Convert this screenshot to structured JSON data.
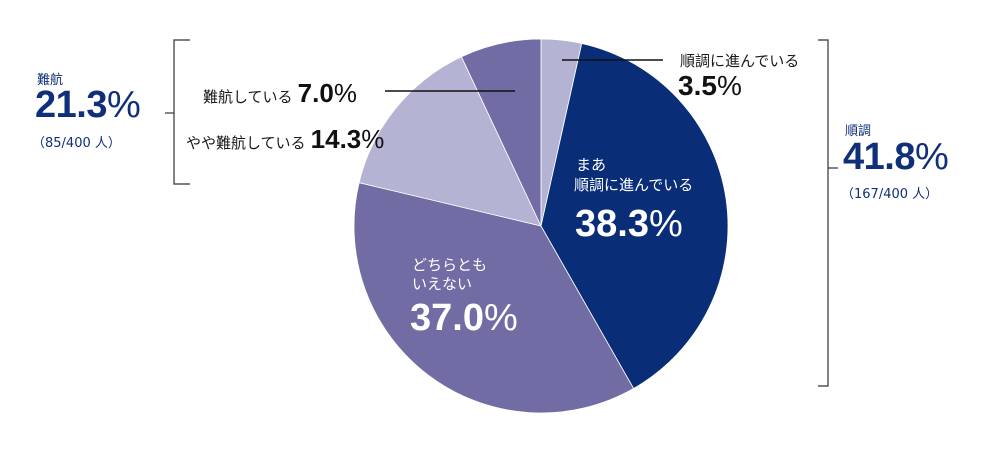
{
  "chart_data": {
    "type": "pie",
    "title": "",
    "start_angle_deg": 0,
    "direction": "clockwise",
    "slices": [
      {
        "label": "順調に進んでいる",
        "value": 3.5,
        "display": "3.5%",
        "color": "#b5b3d4",
        "group": "順調"
      },
      {
        "label": "まあ 順調に進んでいる",
        "value": 38.3,
        "display": "38.3%",
        "color": "#0a2d78",
        "group": "順調"
      },
      {
        "label": "どちらとも いえない",
        "value": 37.0,
        "display": "37.0%",
        "color": "#716ca3",
        "group": null
      },
      {
        "label": "やや難航している",
        "value": 14.3,
        "display": "14.3%",
        "color": "#b5b3d4",
        "group": "難航"
      },
      {
        "label": "難航している",
        "value": 7.0,
        "display": "7.0%",
        "color": "#716ca3",
        "group": "難航"
      }
    ],
    "groups": [
      {
        "name": "難航",
        "percent": "21.3%",
        "count": "（85/400 人）"
      },
      {
        "name": "順調",
        "percent": "41.8%",
        "count": "（167/400 人）"
      }
    ]
  },
  "labels": {
    "smooth": {
      "text": "順調に進んでいる",
      "num": "3.5",
      "pct": "%"
    },
    "mostly": {
      "line1": "まあ",
      "line2": "順調に進んでいる",
      "num": "38.3",
      "pct": "%"
    },
    "neutral": {
      "line1": "どちらとも",
      "line2": "いえない",
      "num": "37.0",
      "pct": "%"
    },
    "somewhat": {
      "text": "やや難航している",
      "num": "14.3",
      "pct": "%"
    },
    "struggling": {
      "text": "難航している",
      "num": "7.0",
      "pct": "%"
    }
  },
  "groups": {
    "left": {
      "name": "難航",
      "num": "21.3",
      "pct": "%",
      "count": "（85/400 人）"
    },
    "right": {
      "name": "順調",
      "num": "41.8",
      "pct": "%",
      "count": "（167/400 人）"
    }
  },
  "colors": {
    "navy": "#0a2d78",
    "medium": "#716ca3",
    "light": "#b5b3d4",
    "group_text": "#0f2f7a"
  }
}
